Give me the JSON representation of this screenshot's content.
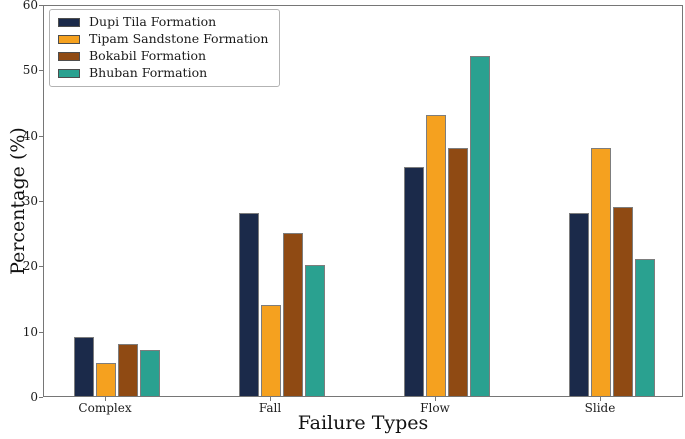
{
  "chart_data": {
    "type": "bar",
    "title": "",
    "categories": [
      "Complex",
      "Fall",
      "Flow",
      "Slide"
    ],
    "series": [
      {
        "name": "Dupi Tila Formation",
        "color": "#1b2a4a",
        "values": [
          9,
          28,
          35,
          28
        ]
      },
      {
        "name": "Tipam Sandstone Formation",
        "color": "#f5a11f",
        "values": [
          5,
          14,
          43,
          38
        ]
      },
      {
        "name": "Bokabil Formation",
        "color": "#8f4a13",
        "values": [
          8,
          25,
          38,
          29
        ]
      },
      {
        "name": "Bhuban Formation",
        "color": "#2aa190",
        "values": [
          7,
          20,
          52,
          21
        ]
      }
    ],
    "xlabel": "Failure Types",
    "ylabel": "Percentage (%)",
    "ylim": [
      0,
      60
    ],
    "yticks": [
      0,
      10,
      20,
      30,
      40,
      50,
      60
    ],
    "grid": false,
    "legend_position": "upper-left",
    "spine_color": "#767676",
    "bar_edge_color": "#7d7d7d"
  }
}
